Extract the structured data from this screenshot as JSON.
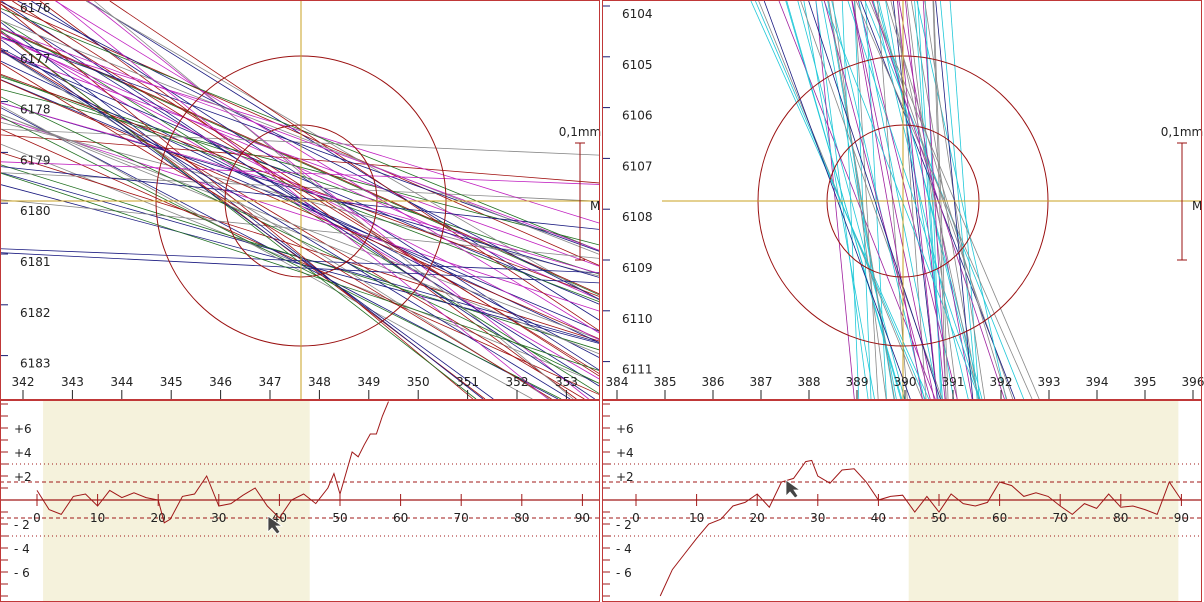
{
  "colors": {
    "frame": "#c03838",
    "curve": "#a01818",
    "circle": "#9a1010",
    "crosshair": "#c8a020",
    "shade": "#f5f2dc",
    "tick": "#1a1a70"
  },
  "chart_data": [
    {
      "type": "line",
      "name": "left-top-plot",
      "xlabel_ticks": [
        "342",
        "343",
        "344",
        "345",
        "346",
        "347",
        "348",
        "349",
        "350",
        "351",
        "352",
        "353"
      ],
      "ytick_labels": [
        "6176",
        "6177",
        "6178",
        "6179",
        "6180",
        "6181",
        "6182",
        "6183"
      ],
      "scale_label": "0,1mm",
      "marker_label": "M"
    },
    {
      "type": "line",
      "name": "right-top-plot",
      "xlabel_ticks": [
        "384",
        "385",
        "386",
        "387",
        "388",
        "389",
        "390",
        "391",
        "392",
        "393",
        "394",
        "395",
        "396"
      ],
      "ytick_labels": [
        "6104",
        "6105",
        "6106",
        "6107",
        "6108",
        "6109",
        "6110",
        "6111"
      ],
      "scale_label": "0,1mm",
      "marker_label": "M"
    },
    {
      "type": "line",
      "name": "left-profile",
      "xticks": [
        "0",
        "10",
        "20",
        "30",
        "40",
        "50",
        "60",
        "70",
        "80",
        "90"
      ],
      "yticks": [
        "+6",
        "+4",
        "+2",
        "- 2",
        "- 4",
        "- 6"
      ],
      "xlim": [
        0,
        90
      ],
      "ylim": [
        -8,
        8
      ],
      "highlight": [
        1,
        45
      ],
      "tolerance_dashed": 1.5,
      "tolerance_dotted": 3,
      "x": [
        0,
        2,
        4,
        6,
        8,
        10,
        12,
        14,
        16,
        18,
        20,
        21,
        22,
        24,
        26,
        28,
        30,
        32,
        34,
        36,
        38,
        40,
        42,
        44,
        46,
        48,
        49,
        50,
        52,
        53,
        54,
        55,
        56,
        57,
        58
      ],
      "y": [
        0.8,
        -0.8,
        -1.2,
        0.3,
        0.5,
        -0.5,
        0.8,
        0.2,
        0.6,
        0.2,
        0,
        -1.9,
        -1.6,
        0.3,
        0.5,
        2,
        -0.5,
        -0.3,
        0.4,
        1,
        -0.5,
        -1.5,
        0,
        0.5,
        -0.3,
        1,
        2.2,
        0.5,
        4,
        3.6,
        4.6,
        5.5,
        5.5,
        7,
        8.2
      ]
    },
    {
      "type": "line",
      "name": "right-profile",
      "xticks": [
        "0",
        "10",
        "20",
        "30",
        "40",
        "50",
        "60",
        "70",
        "80",
        "90"
      ],
      "yticks": [
        "+6",
        "+4",
        "+2",
        "- 2",
        "- 4",
        "- 6"
      ],
      "xlim": [
        0,
        90
      ],
      "ylim": [
        -8,
        8
      ],
      "highlight": [
        45,
        89.5
      ],
      "tolerance_dashed": 1.5,
      "tolerance_dotted": 3,
      "x": [
        4,
        6,
        8,
        10,
        12,
        14,
        16,
        18,
        20,
        22,
        24,
        26,
        28,
        29,
        30,
        32,
        34,
        36,
        38,
        40,
        42,
        44,
        46,
        48,
        50,
        52,
        54,
        56,
        58,
        60,
        62,
        64,
        66,
        68,
        70,
        72,
        74,
        76,
        78,
        80,
        82,
        84,
        86,
        88,
        90
      ],
      "y": [
        -8,
        -5.8,
        -4.5,
        -3.2,
        -2,
        -1.6,
        -0.5,
        -0.2,
        0.5,
        -0.6,
        1.5,
        1.8,
        3.2,
        3.3,
        2,
        1.4,
        2.5,
        2.6,
        1.5,
        0,
        0.3,
        0.4,
        -1,
        0.3,
        -1,
        0.5,
        -0.3,
        -0.5,
        -0.2,
        1.5,
        1.2,
        0.3,
        0.6,
        0.3,
        -0.5,
        -1.2,
        -0.3,
        -0.7,
        0.5,
        -0.6,
        -0.5,
        -0.8,
        -1.2,
        1.5,
        0
      ]
    }
  ]
}
